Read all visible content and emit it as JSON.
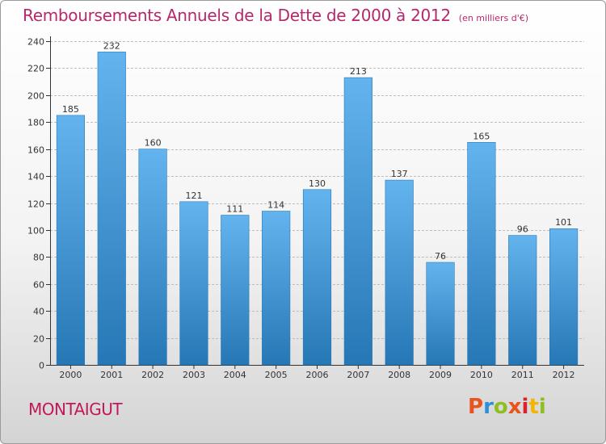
{
  "header": {
    "title": "Remboursements Annuels de la Dette de 2000 à 2012",
    "unit": "(en milliers d'€)"
  },
  "footer": {
    "town": "MONTAIGUT",
    "logo_text": "Proxiti",
    "logo_colors": [
      "#e8531f",
      "#2e8fd6",
      "#8fbf1f",
      "#e8531f",
      "#d9232a",
      "#f2b600",
      "#8fbf1f"
    ]
  },
  "colors": {
    "bar_top": "#63b4ee",
    "bar_bottom": "#2677b5",
    "title": "#b5286b",
    "grid": "#bdbdbd"
  },
  "chart_data": {
    "type": "bar",
    "title": "Remboursements Annuels de la Dette de 2000 à 2012",
    "subtitle": "(en milliers d'€)",
    "categories": [
      "2000",
      "2001",
      "2002",
      "2003",
      "2004",
      "2005",
      "2006",
      "2007",
      "2008",
      "2009",
      "2010",
      "2011",
      "2012"
    ],
    "values": [
      185,
      232,
      160,
      121,
      111,
      114,
      130,
      213,
      137,
      76,
      165,
      96,
      101
    ],
    "yticks": [
      0,
      20,
      40,
      60,
      80,
      100,
      120,
      140,
      160,
      180,
      200,
      220,
      240
    ],
    "ylim": [
      0,
      240
    ],
    "grid": true,
    "data_labels": true
  }
}
